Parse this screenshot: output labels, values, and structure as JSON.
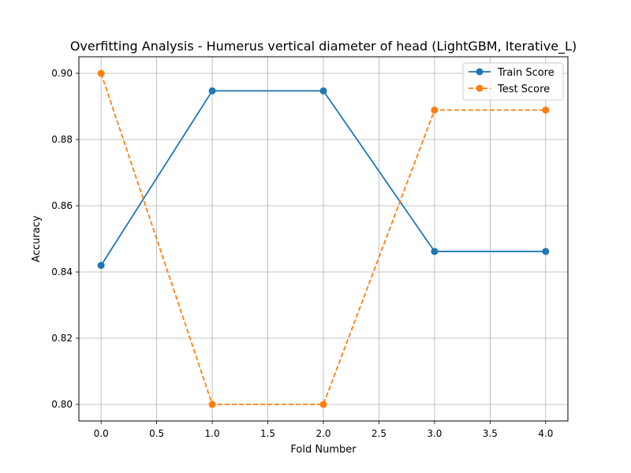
{
  "chart_data": {
    "type": "line",
    "title": "Overfitting Analysis - Humerus vertical diameter of head (LightGBM, Iterative_L)",
    "xlabel": "Fold Number",
    "ylabel": "Accuracy",
    "xlim": [
      -0.2,
      4.2
    ],
    "ylim": [
      0.795,
      0.905
    ],
    "x": [
      0,
      1,
      2,
      3,
      4
    ],
    "xticks": [
      0.0,
      0.5,
      1.0,
      1.5,
      2.0,
      2.5,
      3.0,
      3.5,
      4.0
    ],
    "xtick_labels": [
      "0.0",
      "0.5",
      "1.0",
      "1.5",
      "2.0",
      "2.5",
      "3.0",
      "3.5",
      "4.0"
    ],
    "yticks": [
      0.8,
      0.82,
      0.84,
      0.86,
      0.88,
      0.9
    ],
    "ytick_labels": [
      "0.80",
      "0.82",
      "0.84",
      "0.86",
      "0.88",
      "0.90"
    ],
    "grid": true,
    "legend_position": "top-right",
    "series": [
      {
        "name": "Train Score",
        "values": [
          0.842,
          0.8947,
          0.8947,
          0.8462,
          0.8462
        ],
        "color": "#1f77b4",
        "line_style": "solid",
        "marker": "circle"
      },
      {
        "name": "Test Score",
        "values": [
          0.9,
          0.8,
          0.8,
          0.8889,
          0.8889
        ],
        "color": "#ff7f0e",
        "line_style": "dashed",
        "marker": "circle"
      }
    ]
  }
}
